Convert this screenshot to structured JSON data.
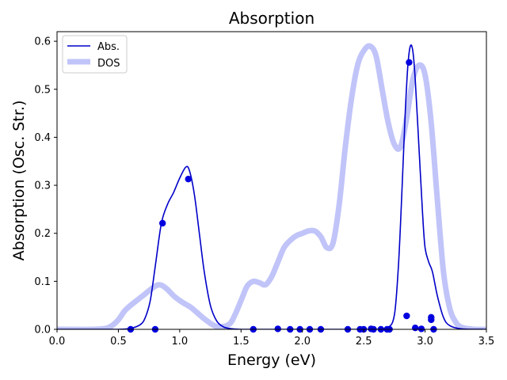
{
  "chart_data": {
    "type": "line",
    "title": "Absorption",
    "xlabel": "Energy (eV)",
    "ylabel": "Absorption (Osc. Str.)",
    "xlim": [
      0.0,
      3.5
    ],
    "ylim": [
      0.0,
      0.62
    ],
    "xticks": [
      "0.0",
      "0.5",
      "1.0",
      "1.5",
      "2.0",
      "2.5",
      "3.0",
      "3.5"
    ],
    "yticks": [
      "0.0",
      "0.1",
      "0.2",
      "0.3",
      "0.4",
      "0.5",
      "0.6"
    ],
    "grid": false,
    "legend_position": "top-left",
    "series": [
      {
        "name": "Abs.",
        "style": "thin-line",
        "color": "#0000c8",
        "x": [
          0.0,
          0.3,
          0.5,
          0.6,
          0.68,
          0.72,
          0.76,
          0.8,
          0.85,
          0.9,
          0.95,
          1.0,
          1.05,
          1.08,
          1.12,
          1.16,
          1.2,
          1.25,
          1.3,
          1.35,
          1.4,
          1.5,
          1.6,
          1.8,
          2.0,
          2.2,
          2.4,
          2.6,
          2.7,
          2.75,
          2.78,
          2.8,
          2.82,
          2.84,
          2.86,
          2.88,
          2.9,
          2.92,
          2.95,
          2.98,
          3.0,
          3.03,
          3.06,
          3.1,
          3.15,
          3.2,
          3.3,
          3.5
        ],
        "y": [
          0.0,
          0.0,
          0.0,
          0.002,
          0.01,
          0.025,
          0.06,
          0.13,
          0.22,
          0.26,
          0.285,
          0.315,
          0.338,
          0.33,
          0.28,
          0.2,
          0.12,
          0.05,
          0.018,
          0.006,
          0.002,
          0.0,
          0.0,
          0.0,
          0.0,
          0.0,
          0.0,
          0.0,
          0.004,
          0.03,
          0.12,
          0.22,
          0.34,
          0.46,
          0.55,
          0.59,
          0.58,
          0.52,
          0.38,
          0.24,
          0.17,
          0.14,
          0.12,
          0.07,
          0.025,
          0.008,
          0.001,
          0.0
        ]
      },
      {
        "name": "DOS",
        "style": "thick-line",
        "color": "#c0c4f8",
        "x": [
          0.0,
          0.3,
          0.4,
          0.45,
          0.5,
          0.55,
          0.6,
          0.7,
          0.8,
          0.85,
          0.9,
          0.95,
          1.0,
          1.05,
          1.1,
          1.2,
          1.3,
          1.4,
          1.45,
          1.5,
          1.55,
          1.6,
          1.65,
          1.7,
          1.75,
          1.8,
          1.85,
          1.9,
          1.95,
          2.0,
          2.05,
          2.1,
          2.15,
          2.2,
          2.25,
          2.3,
          2.35,
          2.4,
          2.45,
          2.5,
          2.55,
          2.6,
          2.65,
          2.7,
          2.75,
          2.8,
          2.85,
          2.9,
          2.95,
          3.0,
          3.05,
          3.1,
          3.15,
          3.2,
          3.25,
          3.3,
          3.4,
          3.5
        ],
        "y": [
          0.0,
          0.0,
          0.002,
          0.008,
          0.02,
          0.038,
          0.05,
          0.07,
          0.09,
          0.092,
          0.083,
          0.07,
          0.06,
          0.052,
          0.044,
          0.022,
          0.006,
          0.01,
          0.03,
          0.06,
          0.09,
          0.1,
          0.097,
          0.093,
          0.11,
          0.14,
          0.17,
          0.185,
          0.195,
          0.2,
          0.205,
          0.205,
          0.193,
          0.17,
          0.18,
          0.26,
          0.38,
          0.48,
          0.55,
          0.58,
          0.59,
          0.57,
          0.5,
          0.43,
          0.385,
          0.38,
          0.44,
          0.52,
          0.55,
          0.53,
          0.43,
          0.27,
          0.12,
          0.045,
          0.015,
          0.004,
          0.0,
          0.0
        ]
      },
      {
        "name": "",
        "style": "markers",
        "color": "#0000e0",
        "x": [
          0.6,
          0.8,
          0.86,
          1.07,
          1.6,
          1.8,
          1.9,
          1.98,
          2.06,
          2.15,
          2.37,
          2.47,
          2.5,
          2.56,
          2.58,
          2.64,
          2.69,
          2.71,
          2.85,
          2.87,
          2.92,
          2.97,
          3.05,
          3.05,
          3.07
        ],
        "y": [
          0.0,
          0.0,
          0.221,
          0.313,
          0.0,
          0.001,
          0.0,
          0.0,
          0.0,
          0.0,
          0.0,
          0.0,
          0.0,
          0.001,
          0.0,
          0.0,
          0.0,
          0.0,
          0.028,
          0.556,
          0.003,
          0.001,
          0.025,
          0.02,
          0.0
        ]
      }
    ]
  }
}
